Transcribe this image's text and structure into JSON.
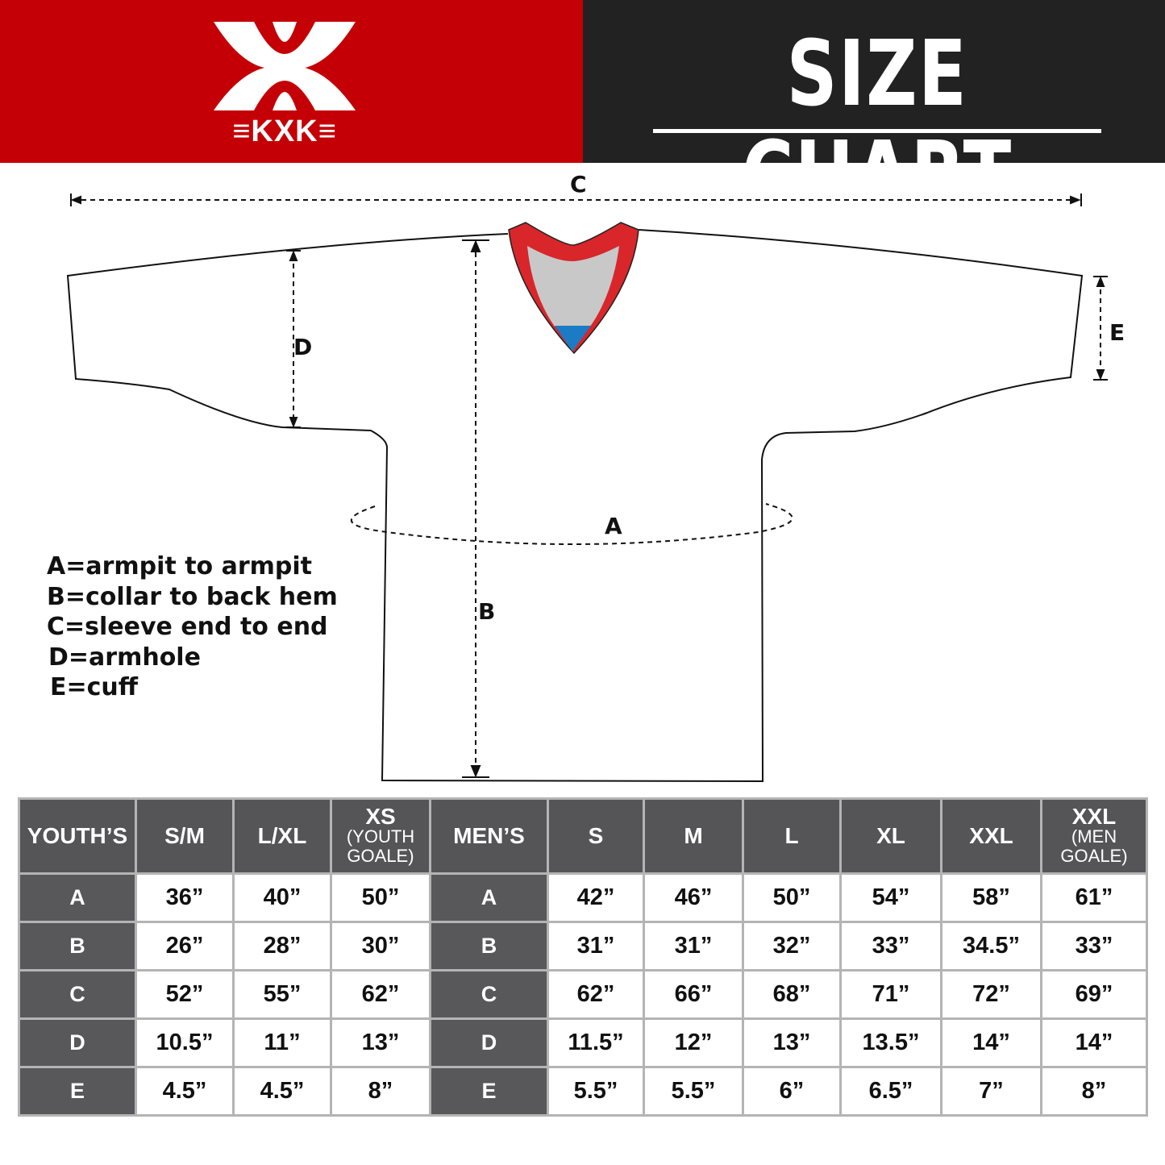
{
  "header": {
    "brand": "KXK",
    "title": "SIZE CHART",
    "colors": {
      "brand_red": "#c40006",
      "dark": "#222222",
      "table_header": "#555557"
    }
  },
  "diagram": {
    "dimension_labels": [
      "A",
      "B",
      "C",
      "D",
      "E"
    ],
    "legend": [
      "A=armpit to armpit",
      "B=collar to back hem",
      "C=sleeve end to end",
      "D=armhole",
      "E=cuff"
    ]
  },
  "table": {
    "youth": {
      "header": "YOUTH’S",
      "columns": [
        {
          "main": "S/M",
          "sub": ""
        },
        {
          "main": "L/XL",
          "sub": ""
        },
        {
          "main": "XS",
          "sub": "(YOUTH GOALE)"
        }
      ],
      "rows": [
        {
          "label": "A",
          "values": [
            "36”",
            "40”",
            "50”"
          ]
        },
        {
          "label": "B",
          "values": [
            "26”",
            "28”",
            "30”"
          ]
        },
        {
          "label": "C",
          "values": [
            "52”",
            "55”",
            "62”"
          ]
        },
        {
          "label": "D",
          "values": [
            "10.5”",
            "11”",
            "13”"
          ]
        },
        {
          "label": "E",
          "values": [
            "4.5”",
            "4.5”",
            "8”"
          ]
        }
      ]
    },
    "men": {
      "header": "MEN’S",
      "columns": [
        {
          "main": "S",
          "sub": ""
        },
        {
          "main": "M",
          "sub": ""
        },
        {
          "main": "L",
          "sub": ""
        },
        {
          "main": "XL",
          "sub": ""
        },
        {
          "main": "XXL",
          "sub": ""
        },
        {
          "main": "XXL",
          "sub": "(MEN GOALE)"
        }
      ],
      "rows": [
        {
          "label": "A",
          "values": [
            "42”",
            "46”",
            "50”",
            "54”",
            "58”",
            "61”"
          ]
        },
        {
          "label": "B",
          "values": [
            "31”",
            "31”",
            "32”",
            "33”",
            "34.5”",
            "33”"
          ]
        },
        {
          "label": "C",
          "values": [
            "62”",
            "66”",
            "68”",
            "71”",
            "72”",
            "69”"
          ]
        },
        {
          "label": "D",
          "values": [
            "11.5”",
            "12”",
            "13”",
            "13.5”",
            "14”",
            "14”"
          ]
        },
        {
          "label": "E",
          "values": [
            "5.5”",
            "5.5”",
            "6”",
            "6.5”",
            "7”",
            "8”"
          ]
        }
      ]
    }
  }
}
